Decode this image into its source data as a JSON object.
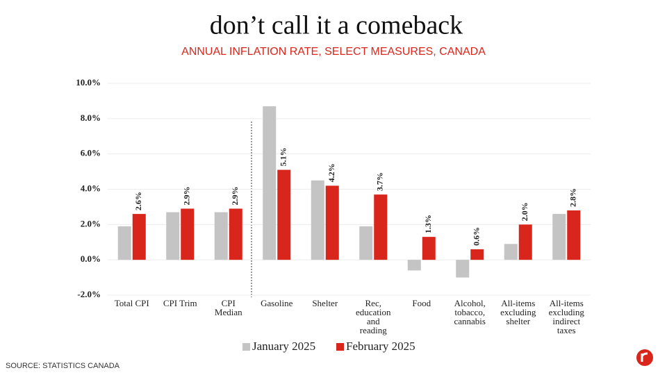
{
  "chart_data": {
    "type": "bar",
    "title": "don’t call it a comeback",
    "subtitle": "ANNUAL INFLATION RATE, SELECT MEASURES, CANADA",
    "source": "SOURCE: STATISTICS CANADA",
    "categories": [
      [
        "Total CPI"
      ],
      [
        "CPI Trim"
      ],
      [
        "CPI",
        "Median"
      ],
      [
        "Gasoline"
      ],
      [
        "Shelter"
      ],
      [
        "Rec,",
        "education",
        "and",
        "reading"
      ],
      [
        "Food"
      ],
      [
        "Alcohol,",
        "tobacco,",
        "cannabis"
      ],
      [
        "All-items",
        "excluding",
        "shelter"
      ],
      [
        "All-items",
        "excluding",
        "indirect",
        "taxes"
      ]
    ],
    "series": [
      {
        "name": "January 2025",
        "color": "#c4c4c4",
        "values": [
          1.9,
          2.7,
          2.7,
          8.7,
          4.5,
          1.9,
          -0.6,
          -1.0,
          0.9,
          2.6
        ]
      },
      {
        "name": "February 2025",
        "color": "#d9261c",
        "values": [
          2.6,
          2.9,
          2.9,
          5.1,
          4.2,
          3.7,
          1.3,
          0.6,
          2.0,
          2.8
        ],
        "value_labels": [
          "2.6%",
          "2.9%",
          "2.9%",
          "5.1%",
          "4.2%",
          "3.7%",
          "1.3%",
          "0.6%",
          "2.0%",
          "2.8%"
        ]
      }
    ],
    "ylim": [
      -2,
      10
    ],
    "yticks": [
      {
        "value": -2,
        "label": "-2.0%"
      },
      {
        "value": 0,
        "label": "0.0%"
      },
      {
        "value": 2,
        "label": "2.0%"
      },
      {
        "value": 4,
        "label": "4.0%"
      },
      {
        "value": 6,
        "label": "6.0%"
      },
      {
        "value": 8,
        "label": "8.0%"
      },
      {
        "value": 10,
        "label": "10.0%"
      }
    ],
    "grid": true,
    "legend": "bottom"
  }
}
